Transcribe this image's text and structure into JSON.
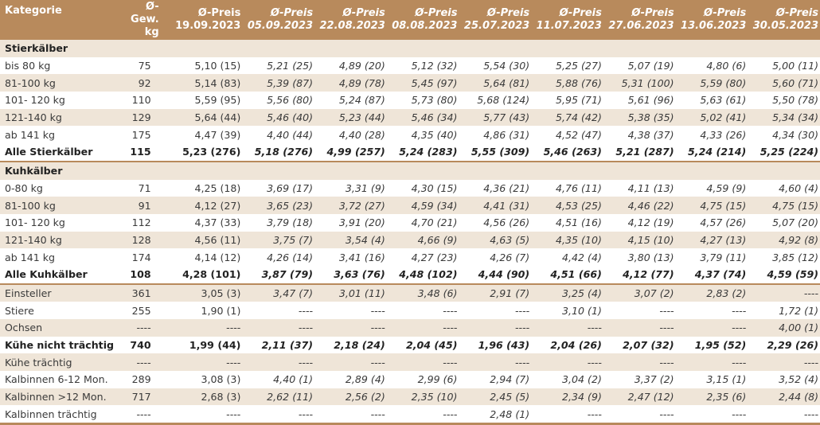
{
  "header": {
    "kategorie": "Kategorie",
    "gew_line1": "Ø-Gew.",
    "gew_line2": "kg",
    "preise": [
      {
        "label": "Ø-Preis",
        "date": "19.09.2023"
      },
      {
        "label": "Ø-Preis",
        "date": "05.09.2023"
      },
      {
        "label": "Ø-Preis",
        "date": "22.08.2023"
      },
      {
        "label": "Ø-Preis",
        "date": "08.08.2023"
      },
      {
        "label": "Ø-Preis",
        "date": "25.07.2023"
      },
      {
        "label": "Ø-Preis",
        "date": "11.07.2023"
      },
      {
        "label": "Ø-Preis",
        "date": "27.06.2023"
      },
      {
        "label": "Ø-Preis",
        "date": "13.06.2023"
      },
      {
        "label": "Ø-Preis",
        "date": "30.05.2023"
      }
    ]
  },
  "colors": {
    "header_bg": "#b88a5c",
    "band_bg": "#efe5d8",
    "rule": "#b88a5c"
  },
  "rows": [
    {
      "type": "section",
      "cat": "Stierkälber",
      "cells": [
        "",
        "",
        "",
        "",
        "",
        "",
        "",
        "",
        "",
        ""
      ]
    },
    {
      "type": "odd",
      "cat": "bis 80 kg",
      "cells": [
        "75",
        "5,10 (15)",
        "5,21 (25)",
        "4,89 (20)",
        "5,12 (32)",
        "5,54 (30)",
        "5,25 (27)",
        "5,07 (19)",
        "4,80 (6)",
        "5,00 (11)"
      ]
    },
    {
      "type": "even",
      "cat": "81-100 kg",
      "cells": [
        "92",
        "5,14 (83)",
        "5,39 (87)",
        "4,89 (78)",
        "5,45 (97)",
        "5,64 (81)",
        "5,88 (76)",
        "5,31 (100)",
        "5,59 (80)",
        "5,60 (71)"
      ]
    },
    {
      "type": "odd",
      "cat": "101- 120 kg",
      "cells": [
        "110",
        "5,59 (95)",
        "5,56 (80)",
        "5,24 (87)",
        "5,73 (80)",
        "5,68 (124)",
        "5,95 (71)",
        "5,61 (96)",
        "5,63 (61)",
        "5,50 (78)"
      ]
    },
    {
      "type": "even",
      "cat": "121-140 kg",
      "cells": [
        "129",
        "5,64 (44)",
        "5,46 (40)",
        "5,23 (44)",
        "5,46 (34)",
        "5,77 (43)",
        "5,74 (42)",
        "5,38 (35)",
        "5,02 (41)",
        "5,34 (34)"
      ]
    },
    {
      "type": "odd",
      "cat": "ab 141 kg",
      "cells": [
        "175",
        "4,47 (39)",
        "4,40 (44)",
        "4,40 (28)",
        "4,35 (40)",
        "4,86 (31)",
        "4,52 (47)",
        "4,38 (37)",
        "4,33 (26)",
        "4,34 (30)"
      ]
    },
    {
      "type": "total",
      "cat": "Alle Stierkälber",
      "cells": [
        "115",
        "5,23 (276)",
        "5,18 (276)",
        "4,99 (257)",
        "5,24 (283)",
        "5,55 (309)",
        "5,46 (263)",
        "5,21 (287)",
        "5,24 (214)",
        "5,25 (224)"
      ]
    },
    {
      "type": "section",
      "cat": "Kuhkälber",
      "cells": [
        "",
        "",
        "",
        "",
        "",
        "",
        "",
        "",
        "",
        ""
      ]
    },
    {
      "type": "odd",
      "cat": "0-80 kg",
      "cells": [
        "71",
        "4,25 (18)",
        "3,69 (17)",
        "3,31 (9)",
        "4,30 (15)",
        "4,36 (21)",
        "4,76 (11)",
        "4,11 (13)",
        "4,59 (9)",
        "4,60 (4)"
      ]
    },
    {
      "type": "even",
      "cat": "81-100 kg",
      "cells": [
        "91",
        "4,12 (27)",
        "3,65 (23)",
        "3,72 (27)",
        "4,59 (34)",
        "4,41 (31)",
        "4,53 (25)",
        "4,46 (22)",
        "4,75 (15)",
        "4,75 (15)"
      ]
    },
    {
      "type": "odd",
      "cat": "101- 120 kg",
      "cells": [
        "112",
        "4,37 (33)",
        "3,79 (18)",
        "3,91 (20)",
        "4,70 (21)",
        "4,56 (26)",
        "4,51 (16)",
        "4,12 (19)",
        "4,57 (26)",
        "5,07 (20)"
      ]
    },
    {
      "type": "even",
      "cat": "121-140 kg",
      "cells": [
        "128",
        "4,56 (11)",
        "3,75 (7)",
        "3,54 (4)",
        "4,66 (9)",
        "4,63 (5)",
        "4,35 (10)",
        "4,15 (10)",
        "4,27 (13)",
        "4,92 (8)"
      ]
    },
    {
      "type": "odd",
      "cat": "ab 141 kg",
      "cells": [
        "174",
        "4,14 (12)",
        "4,26 (14)",
        "3,41 (16)",
        "4,27 (23)",
        "4,26 (7)",
        "4,42 (4)",
        "3,80 (13)",
        "3,79 (11)",
        "3,85 (12)"
      ]
    },
    {
      "type": "total",
      "cat": "Alle Kuhkälber",
      "cells": [
        "108",
        "4,28 (101)",
        "3,87 (79)",
        "3,63 (76)",
        "4,48 (102)",
        "4,44 (90)",
        "4,51 (66)",
        "4,12 (77)",
        "4,37 (74)",
        "4,59 (59)"
      ]
    },
    {
      "type": "even",
      "cat": "Einsteller",
      "cells": [
        "361",
        "3,05 (3)",
        "3,47 (7)",
        "3,01 (11)",
        "3,48 (6)",
        "2,91 (7)",
        "3,25 (4)",
        "3,07 (2)",
        "2,83 (2)",
        "----"
      ]
    },
    {
      "type": "odd",
      "cat": "Stiere",
      "cells": [
        "255",
        "1,90 (1)",
        "----",
        "----",
        "----",
        "----",
        "3,10 (1)",
        "----",
        "----",
        "1,72 (1)"
      ]
    },
    {
      "type": "even",
      "cat": "Ochsen",
      "cells": [
        "----",
        "----",
        "----",
        "----",
        "----",
        "----",
        "----",
        "----",
        "----",
        "4,00 (1)"
      ]
    },
    {
      "type": "odd-bold",
      "cat": "Kühe nicht trächtig",
      "cells": [
        "740",
        "1,99 (44)",
        "2,11 (37)",
        "2,18 (24)",
        "2,04 (45)",
        "1,96 (43)",
        "2,04 (26)",
        "2,07 (32)",
        "1,95 (52)",
        "2,29 (26)"
      ]
    },
    {
      "type": "even",
      "cat": "Kühe trächtig",
      "cells": [
        "----",
        "----",
        "----",
        "----",
        "----",
        "----",
        "----",
        "----",
        "----",
        "----"
      ]
    },
    {
      "type": "odd",
      "cat": "Kalbinnen 6-12 Mon.",
      "cells": [
        "289",
        "3,08 (3)",
        "4,40 (1)",
        "2,89 (4)",
        "2,99 (6)",
        "2,94 (7)",
        "3,04 (2)",
        "3,37 (2)",
        "3,15 (1)",
        "3,52 (4)"
      ]
    },
    {
      "type": "even",
      "cat": "Kalbinnen >12 Mon.",
      "cells": [
        "717",
        "2,68 (3)",
        "2,62 (11)",
        "2,56 (2)",
        "2,35 (10)",
        "2,45 (5)",
        "2,34 (9)",
        "2,47 (12)",
        "2,35 (6)",
        "2,44 (8)"
      ]
    },
    {
      "type": "odd",
      "cat": "Kalbinnen trächtig",
      "cells": [
        "----",
        "----",
        "----",
        "----",
        "----",
        "2,48 (1)",
        "----",
        "----",
        "----",
        "----"
      ]
    }
  ]
}
